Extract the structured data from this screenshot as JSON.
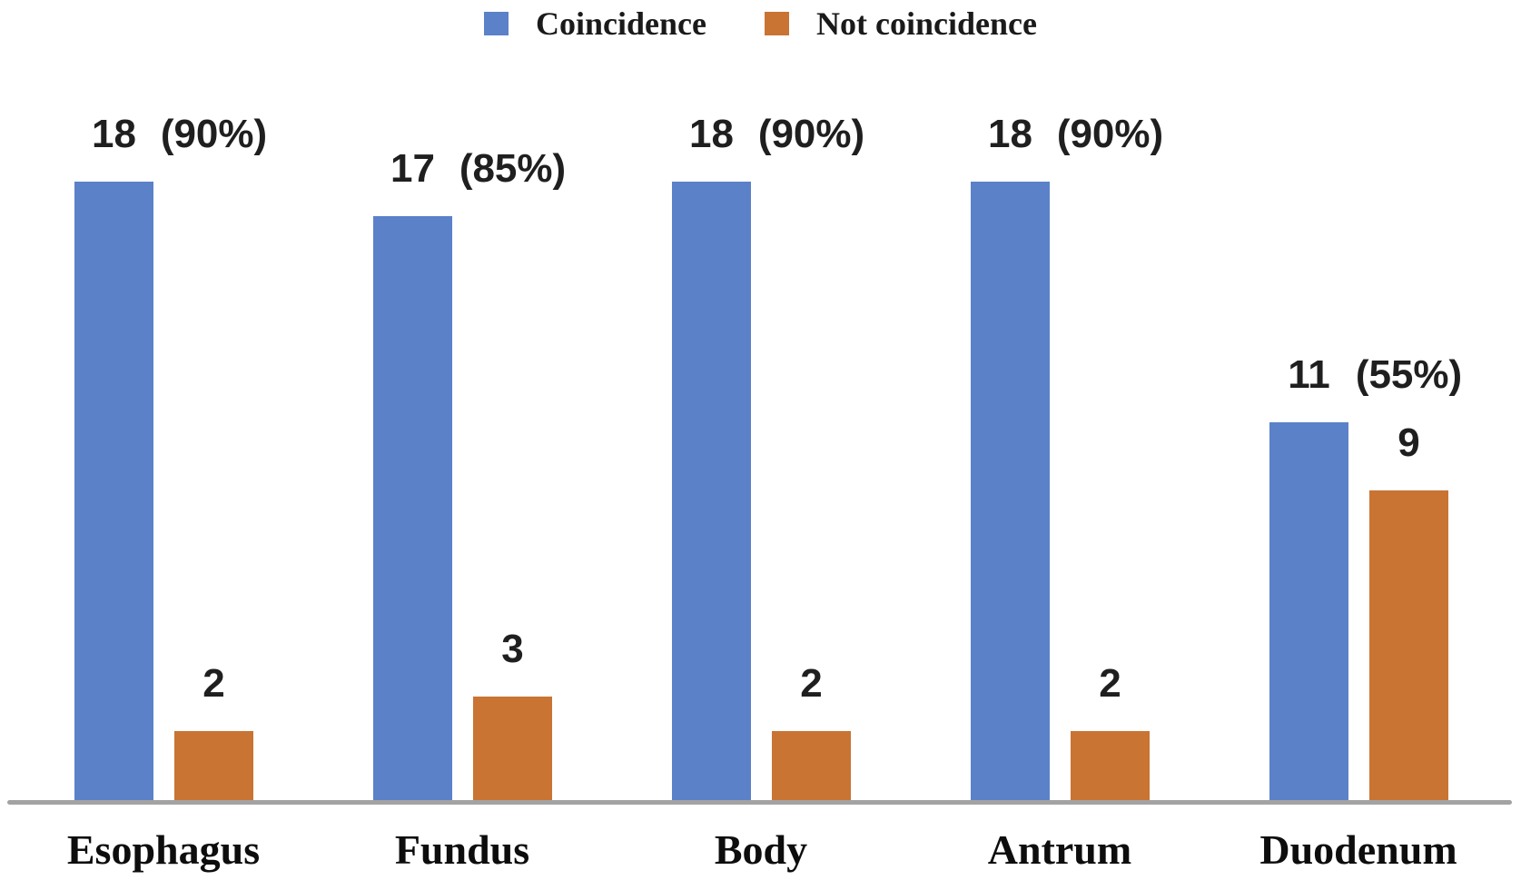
{
  "chart_data": {
    "type": "bar",
    "title": "",
    "categories": [
      "Esophagus",
      "Fundus",
      "Body",
      "Antrum",
      "Duodenum"
    ],
    "series": [
      {
        "name": "Coincidence",
        "color": "#5b81c9",
        "values": [
          18,
          17,
          18,
          18,
          11
        ],
        "pct_labels": [
          "(90%)",
          "(85%)",
          "(90%)",
          "(90%)",
          "(55%)"
        ]
      },
      {
        "name": "Not coincidence",
        "color": "#c97433",
        "values": [
          2,
          3,
          2,
          2,
          9
        ],
        "pct_labels": [
          "",
          "",
          "",
          "",
          ""
        ]
      }
    ],
    "ylim": [
      0,
      18
    ],
    "xlabel": "",
    "ylabel": "",
    "grid": false,
    "y_axis_visible": false,
    "legend_position": "top-center",
    "axis_line_color": "#a3a3a3",
    "label_color": "#1f1f1f"
  },
  "legend": {
    "items": [
      {
        "label": "Coincidence",
        "color": "#5b81c9"
      },
      {
        "label": "Not coincidence",
        "color": "#c97433"
      }
    ]
  }
}
